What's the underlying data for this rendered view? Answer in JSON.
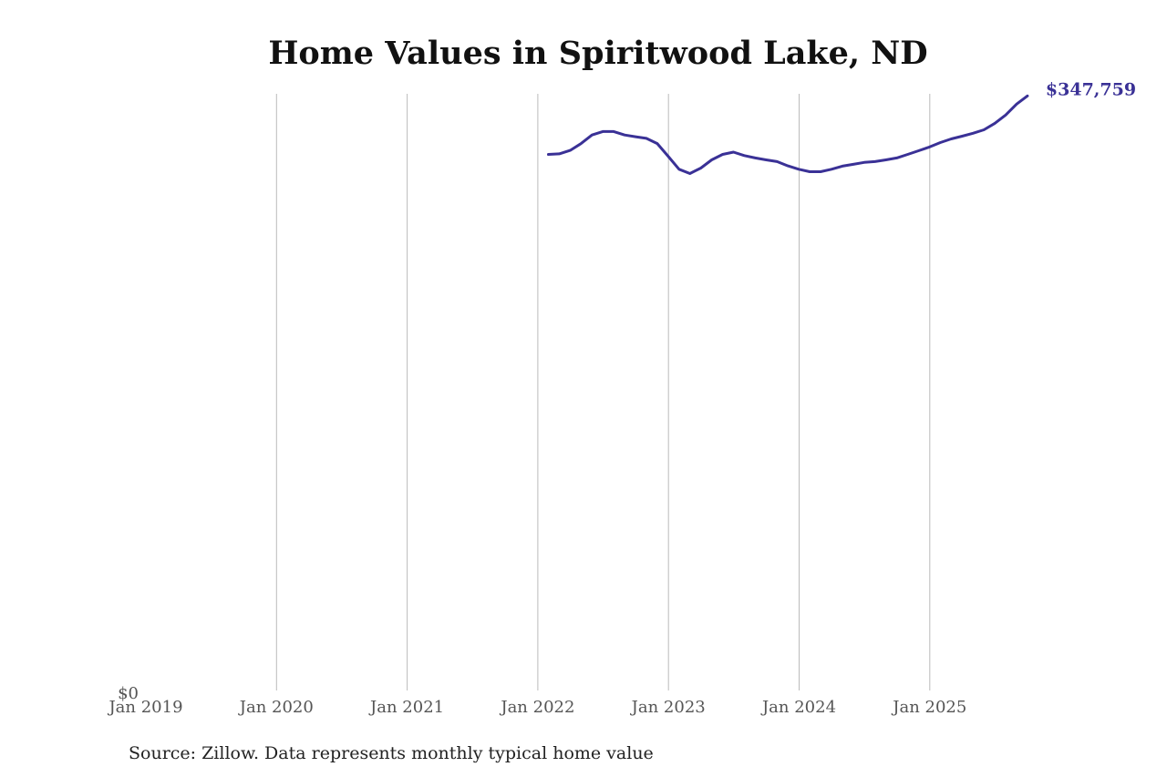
{
  "chart_data": {
    "type": "line",
    "title": "Home Values in Spiritwood Lake, ND",
    "xlabel": "",
    "ylabel": "",
    "x_ticks": [
      "Jan 2019",
      "Jan 2020",
      "Jan 2021",
      "Jan 2022",
      "Jan 2023",
      "Jan 2024",
      "Jan 2025"
    ],
    "y_ticks": [
      "$0"
    ],
    "xlim": [
      "2019-01",
      "2025-12"
    ],
    "ylim": [
      0,
      349000
    ],
    "grid": "vertical",
    "line_color": "#3a3196",
    "end_label": "$347,759",
    "series": [
      {
        "x": [
          "2022-01",
          "2022-02",
          "2022-03",
          "2022-04",
          "2022-05",
          "2022-06",
          "2022-07",
          "2022-08",
          "2022-09",
          "2022-10",
          "2022-11",
          "2022-12",
          "2023-01",
          "2023-02",
          "2023-03",
          "2023-04",
          "2023-05",
          "2023-06",
          "2023-07",
          "2023-08",
          "2023-09",
          "2023-10",
          "2023-11",
          "2023-12",
          "2024-01",
          "2024-02",
          "2024-03",
          "2024-04",
          "2024-05",
          "2024-06",
          "2024-07",
          "2024-08",
          "2024-09",
          "2024-10",
          "2024-11",
          "2024-12",
          "2025-01",
          "2025-02",
          "2025-03",
          "2025-04",
          "2025-05",
          "2025-06",
          "2025-07",
          "2025-08",
          "2025-09"
        ],
        "values": [
          313700,
          314000,
          316000,
          320000,
          325000,
          327000,
          327000,
          325000,
          324000,
          323000,
          320000,
          312600,
          305000,
          302500,
          305700,
          310500,
          313700,
          315000,
          313000,
          311600,
          310500,
          309500,
          307000,
          305000,
          303600,
          303600,
          305000,
          306800,
          307900,
          309000,
          309500,
          310500,
          311600,
          313700,
          315800,
          318000,
          320600,
          322700,
          324300,
          326000,
          328000,
          331800,
          336600,
          343000,
          347759
        ]
      }
    ]
  },
  "source": "Source: Zillow. Data represents monthly typical home value"
}
